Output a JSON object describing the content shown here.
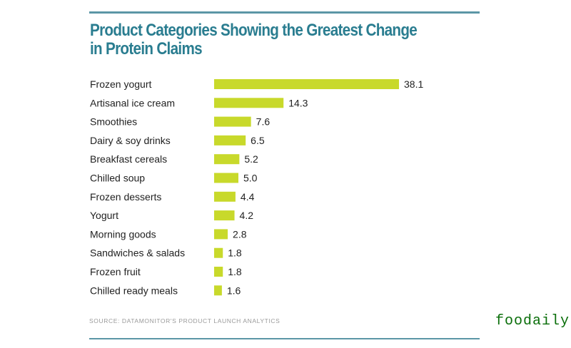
{
  "chart_data": {
    "type": "bar",
    "orientation": "horizontal",
    "title": "Product Categories Showing the Greatest Change in Protein Claims",
    "title_lines": [
      "Product Categories Showing the Greatest Change",
      "in Protein Claims"
    ],
    "categories": [
      "Frozen yogurt",
      "Artisanal ice cream",
      "Smoothies",
      "Dairy & soy drinks",
      "Breakfast cereals",
      "Chilled soup",
      "Frozen desserts",
      "Yogurt",
      "Morning goods",
      "Sandwiches & salads",
      "Frozen fruit",
      "Chilled ready meals"
    ],
    "values": [
      38.1,
      14.3,
      7.6,
      6.5,
      5.2,
      5.0,
      4.4,
      4.2,
      2.8,
      1.8,
      1.8,
      1.6
    ],
    "value_labels": [
      "38.1",
      "14.3",
      "7.6",
      "6.5",
      "5.2",
      "5.0",
      "4.4",
      "4.2",
      "2.8",
      "1.8",
      "1.8",
      "1.6"
    ],
    "xlabel": "",
    "ylabel": "",
    "xlim": [
      0,
      38.1
    ],
    "grid": false,
    "legend": "none",
    "bar_color": "#c8d92b",
    "source": "SOURCE: DATAMONITOR'S PRODUCT LAUNCH ANALYTICS"
  },
  "colors": {
    "title": "#2a7d90",
    "rule": "#5b96a6",
    "bar": "#c8d92b",
    "source": "#9a9a9a",
    "watermark": "#0a6e0a"
  },
  "watermark": "foodaily"
}
